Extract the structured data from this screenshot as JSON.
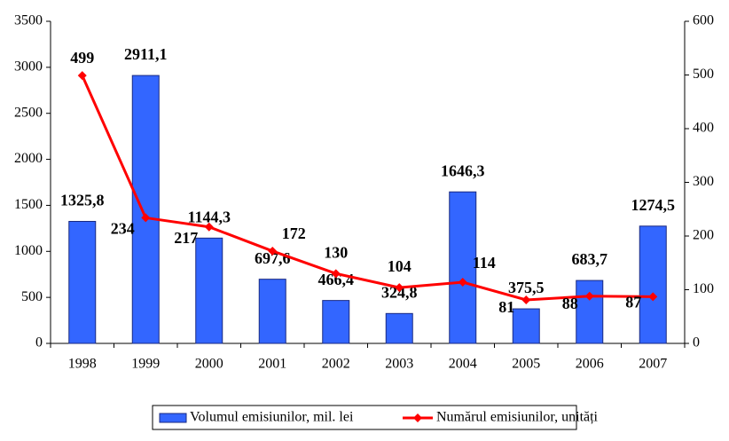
{
  "chart_data": {
    "type": "bar",
    "categories": [
      "1998",
      "1999",
      "2000",
      "2001",
      "2002",
      "2003",
      "2004",
      "2005",
      "2006",
      "2007"
    ],
    "series": [
      {
        "name": "Volumul emisiunilor, mil. lei",
        "type": "bar",
        "color": "#3366ff",
        "label_color": "#4a7ae0",
        "values": [
          1325.8,
          2911.1,
          1144.3,
          697.6,
          466.4,
          324.8,
          1646.3,
          375.5,
          683.7,
          1274.5
        ],
        "value_labels": [
          "1325,8",
          "2911,1",
          "1144,3",
          "697,6",
          "466,4",
          "324,8",
          "1646,3",
          "375,5",
          "683,7",
          "1274,5"
        ]
      },
      {
        "name": "Numărul emisiunilor, unități",
        "type": "line",
        "axis": "y2",
        "color": "#ff0000",
        "values": [
          499,
          234,
          217,
          172,
          130,
          104,
          114,
          81,
          88,
          87
        ]
      }
    ],
    "ylim": [
      0,
      3500
    ],
    "yticks": [
      0,
      500,
      1000,
      1500,
      2000,
      2500,
      3000,
      3500
    ],
    "y2lim": [
      0,
      600
    ],
    "y2ticks": [
      0,
      100,
      200,
      300,
      400,
      500,
      600
    ],
    "grid": false,
    "legend": "bottom"
  }
}
